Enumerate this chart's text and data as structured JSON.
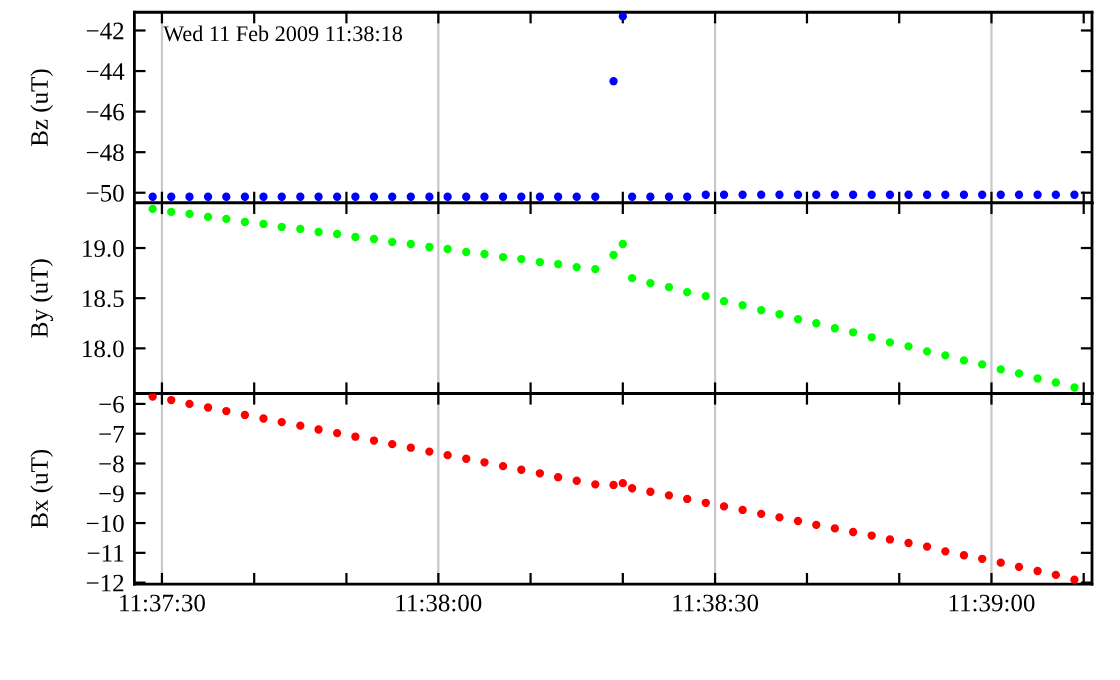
{
  "chart_data": [
    {
      "type": "scatter",
      "ylabel": "Bz (uT)",
      "annotations": [
        "Wed 11 Feb 2009 11:38:18"
      ],
      "marker": "circle",
      "tick_labels": "y",
      "x": [
        11.62472,
        11.62528,
        11.62583,
        11.62639,
        11.62694,
        11.6275,
        11.62806,
        11.62861,
        11.62917,
        11.62972,
        11.63028,
        11.63083,
        11.63139,
        11.63194,
        11.6325,
        11.63306,
        11.63361,
        11.63417,
        11.63472,
        11.63528,
        11.63583,
        11.63639,
        11.63694,
        11.6375,
        11.63806,
        11.63861,
        11.63889,
        11.63917,
        11.63972,
        11.64028,
        11.64083,
        11.64139,
        11.64194,
        11.6425,
        11.64306,
        11.64361,
        11.64417,
        11.64472,
        11.64528,
        11.64583,
        11.64639,
        11.64694,
        11.6475,
        11.64806,
        11.64861,
        11.64917,
        11.64972,
        11.65028,
        11.65083,
        11.65139,
        11.65194,
        11.6525
      ],
      "series": [
        {
          "color": "#0000ff",
          "values": [
            -50.2,
            -50.2,
            -50.2,
            -50.2,
            -50.2,
            -50.2,
            -50.2,
            -50.2,
            -50.2,
            -50.2,
            -50.2,
            -50.2,
            -50.2,
            -50.2,
            -50.2,
            -50.2,
            -50.2,
            -50.2,
            -50.2,
            -50.2,
            -50.2,
            -50.2,
            -50.2,
            -50.2,
            -50.2,
            -44.5,
            -41.3,
            -50.2,
            -50.2,
            -50.2,
            -50.2,
            -50.1,
            -50.1,
            -50.1,
            -50.1,
            -50.1,
            -50.1,
            -50.1,
            -50.1,
            -50.1,
            -50.1,
            -50.1,
            -50.1,
            -50.1,
            -50.1,
            -50.1,
            -50.1,
            -50.1,
            -50.1,
            -50.1,
            -50.1,
            -50.1
          ]
        }
      ],
      "xlim": [
        11.62417,
        11.65303
      ],
      "xticks": [
        {
          "value": 11.625,
          "label": null
        },
        {
          "value": 11.62778,
          "label": null
        },
        {
          "value": 11.63056,
          "label": null
        },
        {
          "value": 11.63333,
          "label": null
        },
        {
          "value": 11.63611,
          "label": null
        },
        {
          "value": 11.63889,
          "label": null
        },
        {
          "value": 11.64167,
          "label": null
        },
        {
          "value": 11.64444,
          "label": null
        },
        {
          "value": 11.64722,
          "label": null
        },
        {
          "value": 11.65,
          "label": null
        },
        {
          "value": 11.65278,
          "label": null
        }
      ],
      "ylim": [
        -50.5,
        -41.1
      ],
      "yticks": [
        {
          "value": -50,
          "label": "−50"
        },
        {
          "value": -48,
          "label": "−48"
        },
        {
          "value": -46,
          "label": "−46"
        },
        {
          "value": -44,
          "label": "−44"
        },
        {
          "value": -42,
          "label": "−42"
        }
      ],
      "ref_lines": [
        {
          "axis": "x",
          "value": 11.625,
          "color": "#c8c8c8"
        },
        {
          "axis": "x",
          "value": 11.63333,
          "color": "#c8c8c8"
        },
        {
          "axis": "x",
          "value": 11.64167,
          "color": "#c8c8c8"
        },
        {
          "axis": "x",
          "value": 11.65,
          "color": "#c8c8c8"
        }
      ]
    },
    {
      "type": "scatter",
      "ylabel": "By (uT)",
      "marker": "circle",
      "tick_labels": "y",
      "x": [
        11.62472,
        11.62528,
        11.62583,
        11.62639,
        11.62694,
        11.6275,
        11.62806,
        11.62861,
        11.62917,
        11.62972,
        11.63028,
        11.63083,
        11.63139,
        11.63194,
        11.6325,
        11.63306,
        11.63361,
        11.63417,
        11.63472,
        11.63528,
        11.63583,
        11.63639,
        11.63694,
        11.6375,
        11.63806,
        11.63861,
        11.63889,
        11.63917,
        11.63972,
        11.64028,
        11.64083,
        11.64139,
        11.64194,
        11.6425,
        11.64306,
        11.64361,
        11.64417,
        11.64472,
        11.64528,
        11.64583,
        11.64639,
        11.64694,
        11.6475,
        11.64806,
        11.64861,
        11.64917,
        11.64972,
        11.65028,
        11.65083,
        11.65139,
        11.65194,
        11.6525
      ],
      "series": [
        {
          "color": "#00ff00",
          "values": [
            19.39,
            19.36,
            19.34,
            19.31,
            19.29,
            19.26,
            19.24,
            19.21,
            19.19,
            19.16,
            19.14,
            19.11,
            19.09,
            19.06,
            19.04,
            19.01,
            18.99,
            18.96,
            18.94,
            18.91,
            18.89,
            18.86,
            18.84,
            18.81,
            18.79,
            18.93,
            19.04,
            18.7,
            18.65,
            18.61,
            18.56,
            18.52,
            18.47,
            18.43,
            18.38,
            18.34,
            18.29,
            18.25,
            18.2,
            18.16,
            18.11,
            18.06,
            18.02,
            17.97,
            17.93,
            17.88,
            17.84,
            17.79,
            17.75,
            17.7,
            17.66,
            17.61
          ]
        }
      ],
      "xlim": [
        11.62417,
        11.65303
      ],
      "xticks": [
        {
          "value": 11.625,
          "label": null
        },
        {
          "value": 11.62778,
          "label": null
        },
        {
          "value": 11.63056,
          "label": null
        },
        {
          "value": 11.63333,
          "label": null
        },
        {
          "value": 11.63611,
          "label": null
        },
        {
          "value": 11.63889,
          "label": null
        },
        {
          "value": 11.64167,
          "label": null
        },
        {
          "value": 11.64444,
          "label": null
        },
        {
          "value": 11.64722,
          "label": null
        },
        {
          "value": 11.65,
          "label": null
        },
        {
          "value": 11.65278,
          "label": null
        }
      ],
      "ylim": [
        17.55,
        19.45
      ],
      "yticks": [
        {
          "value": 18,
          "label": "18.0"
        },
        {
          "value": 18.5,
          "label": "18.5"
        },
        {
          "value": 19,
          "label": "19.0"
        }
      ],
      "ref_lines": [
        {
          "axis": "x",
          "value": 11.625,
          "color": "#c8c8c8"
        },
        {
          "axis": "x",
          "value": 11.63333,
          "color": "#c8c8c8"
        },
        {
          "axis": "x",
          "value": 11.64167,
          "color": "#c8c8c8"
        },
        {
          "axis": "x",
          "value": 11.65,
          "color": "#c8c8c8"
        }
      ]
    },
    {
      "type": "scatter",
      "ylabel": "Bx (uT)",
      "marker": "circle",
      "x": [
        11.62472,
        11.62528,
        11.62583,
        11.62639,
        11.62694,
        11.6275,
        11.62806,
        11.62861,
        11.62917,
        11.62972,
        11.63028,
        11.63083,
        11.63139,
        11.63194,
        11.6325,
        11.63306,
        11.63361,
        11.63417,
        11.63472,
        11.63528,
        11.63583,
        11.63639,
        11.63694,
        11.6375,
        11.63806,
        11.63861,
        11.63889,
        11.63917,
        11.63972,
        11.64028,
        11.64083,
        11.64139,
        11.64194,
        11.6425,
        11.64306,
        11.64361,
        11.64417,
        11.64472,
        11.64528,
        11.64583,
        11.64639,
        11.64694,
        11.6475,
        11.64806,
        11.64861,
        11.64917,
        11.64972,
        11.65028,
        11.65083,
        11.65139,
        11.65194,
        11.6525
      ],
      "series": [
        {
          "color": "#ff0000",
          "values": [
            -5.75,
            -5.87,
            -6.0,
            -6.12,
            -6.24,
            -6.37,
            -6.49,
            -6.61,
            -6.73,
            -6.86,
            -6.98,
            -7.1,
            -7.23,
            -7.35,
            -7.47,
            -7.6,
            -7.72,
            -7.84,
            -7.96,
            -8.09,
            -8.21,
            -8.33,
            -8.46,
            -8.58,
            -8.7,
            -8.72,
            -8.66,
            -8.83,
            -8.95,
            -9.07,
            -9.19,
            -9.32,
            -9.44,
            -9.56,
            -9.69,
            -9.81,
            -9.93,
            -10.06,
            -10.18,
            -10.3,
            -10.42,
            -10.55,
            -10.67,
            -10.79,
            -10.95,
            -11.08,
            -11.2,
            -11.33,
            -11.47,
            -11.61,
            -11.74,
            -11.9
          ]
        }
      ],
      "xlim": [
        11.62417,
        11.65303
      ],
      "xticks": [
        {
          "value": 11.625,
          "label": "11:37:30"
        },
        {
          "value": 11.62778,
          "label": null
        },
        {
          "value": 11.63056,
          "label": null
        },
        {
          "value": 11.63333,
          "label": "11:38:00"
        },
        {
          "value": 11.63611,
          "label": null
        },
        {
          "value": 11.63889,
          "label": null
        },
        {
          "value": 11.64167,
          "label": "11:38:30"
        },
        {
          "value": 11.64444,
          "label": null
        },
        {
          "value": 11.64722,
          "label": null
        },
        {
          "value": 11.65,
          "label": "11:39:00"
        },
        {
          "value": 11.65278,
          "label": null
        }
      ],
      "ylim": [
        -12.05,
        -5.65
      ],
      "yticks": [
        {
          "value": -12,
          "label": "−12"
        },
        {
          "value": -11,
          "label": "−11"
        },
        {
          "value": -10,
          "label": "−10"
        },
        {
          "value": -9,
          "label": "−9"
        },
        {
          "value": -8,
          "label": "−8"
        },
        {
          "value": -7,
          "label": "−7"
        },
        {
          "value": -6,
          "label": "−6"
        }
      ],
      "ref_lines": [
        {
          "axis": "x",
          "value": 11.625,
          "color": "#c8c8c8"
        },
        {
          "axis": "x",
          "value": 11.63333,
          "color": "#c8c8c8"
        },
        {
          "axis": "x",
          "value": 11.64167,
          "color": "#c8c8c8"
        },
        {
          "axis": "x",
          "value": 11.65,
          "color": "#c8c8c8"
        }
      ]
    }
  ]
}
